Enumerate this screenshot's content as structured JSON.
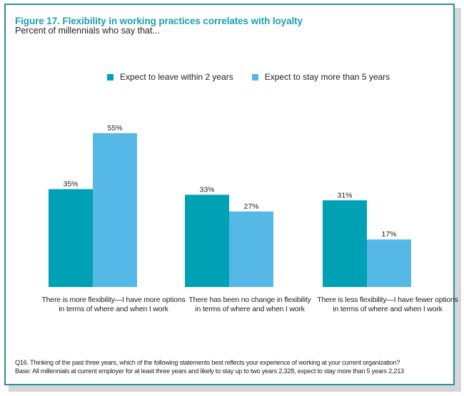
{
  "chart_data": {
    "type": "bar",
    "title": "Figure 17. Flexibility in working practices correlates with loyalty",
    "subtitle": "Percent of millennials who say that...",
    "categories": [
      [
        "There is more flexibility—I have more options",
        "in terms of where and when I work"
      ],
      [
        "There has been no change in flexibility",
        "in terms of where and when I work"
      ],
      [
        "There is less flexibility—I have fewer options",
        "in terms of where and when I work"
      ]
    ],
    "series": [
      {
        "name": "Expect to leave within 2 years",
        "color": "#00a1b4",
        "values": [
          35,
          33,
          31
        ],
        "labels": [
          "35%",
          "33%",
          "31%"
        ]
      },
      {
        "name": "Expect to stay more than 5 years",
        "color": "#55b8e6",
        "values": [
          55,
          27,
          17
        ],
        "labels": [
          "55%",
          "27%",
          "17%"
        ]
      }
    ],
    "xlabel": "",
    "ylabel": "",
    "ylim": [
      0,
      55
    ],
    "grid": false,
    "legend_position": "top",
    "footnotes": [
      "Q16. Thinking of the past three years, which of the following statements best reflects your experience of working at your current organization?",
      "Base: All millennials at current employer for at least three years and likely to stay up to two years 2,328, expect to stay more than 5 years 2,213"
    ]
  },
  "colors": {
    "title": "#1aa1ae",
    "frame": "#2a8f98"
  }
}
